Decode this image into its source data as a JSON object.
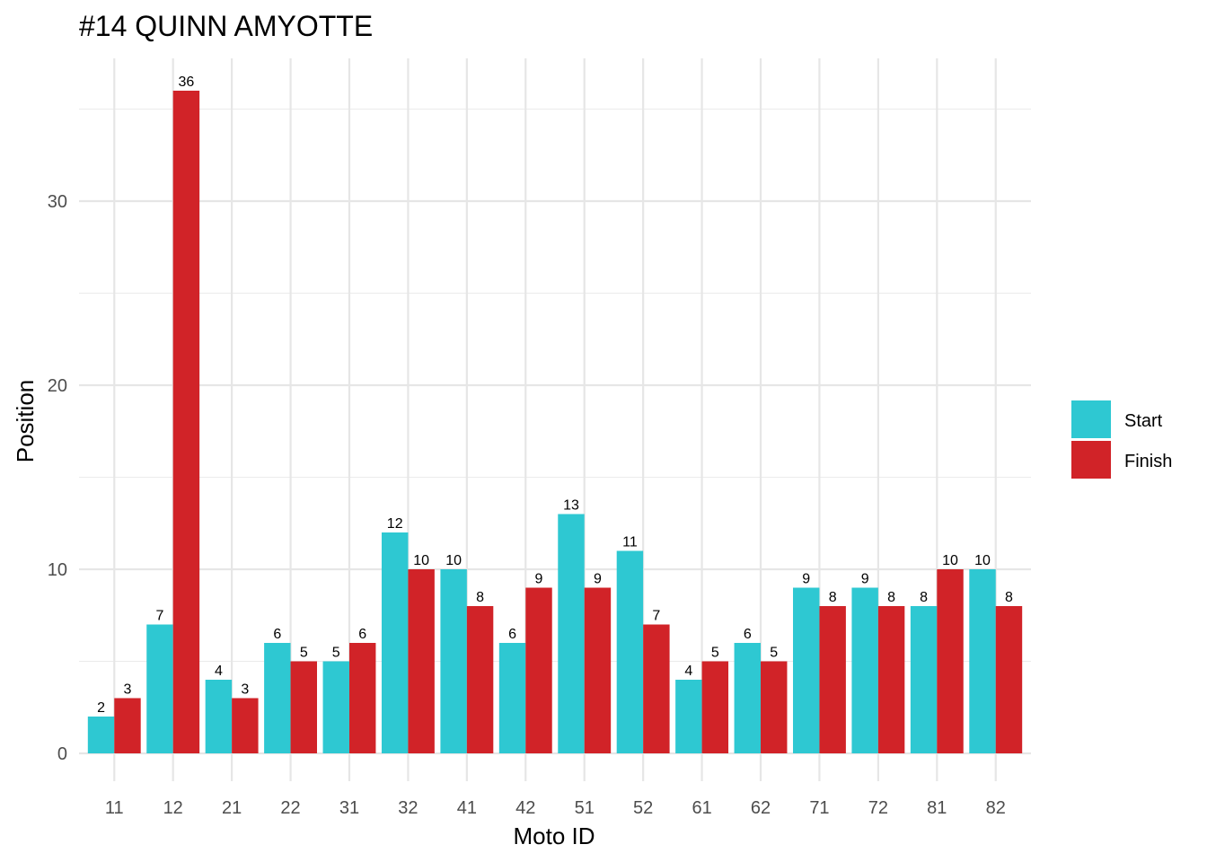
{
  "chart_data": {
    "type": "bar",
    "title": "#14 QUINN AMYOTTE",
    "xlabel": "Moto ID",
    "ylabel": "Position",
    "categories": [
      "11",
      "12",
      "21",
      "22",
      "31",
      "32",
      "41",
      "42",
      "51",
      "52",
      "61",
      "62",
      "71",
      "72",
      "81",
      "82"
    ],
    "series": [
      {
        "name": "Start",
        "color": "#2ec8d2",
        "values": [
          2,
          7,
          4,
          6,
          5,
          12,
          10,
          6,
          13,
          11,
          4,
          6,
          9,
          9,
          8,
          10
        ]
      },
      {
        "name": "Finish",
        "color": "#d12328",
        "values": [
          3,
          36,
          3,
          5,
          6,
          10,
          8,
          9,
          9,
          7,
          5,
          5,
          8,
          8,
          10,
          8
        ]
      }
    ],
    "ylim": [
      0,
      37.8
    ],
    "yticks": [
      0,
      10,
      20,
      30
    ],
    "grid": true,
    "legend_position": "right",
    "data_labels": true
  }
}
